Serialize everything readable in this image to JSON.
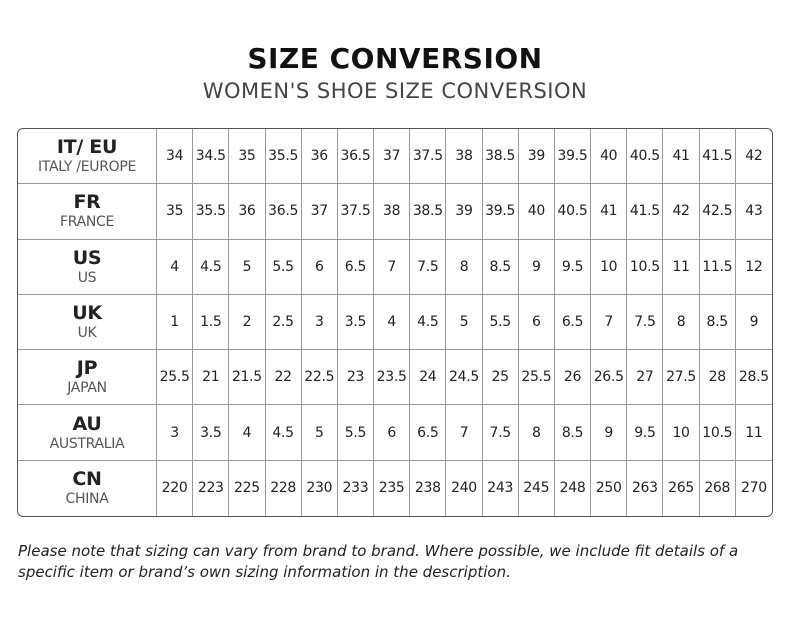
{
  "header": {
    "title": "SIZE CONVERSION",
    "subtitle": "WOMEN'S SHOE SIZE CONVERSION"
  },
  "table": {
    "rows": [
      {
        "code": "IT/ EU",
        "name": "ITALY /EUROPE",
        "values": [
          34,
          34.5,
          35,
          35.5,
          36,
          36.5,
          37,
          37.5,
          38,
          38.5,
          39,
          39.5,
          40,
          40.5,
          41,
          41.5,
          42
        ]
      },
      {
        "code": "FR",
        "name": "FRANCE",
        "values": [
          35,
          35.5,
          36,
          36.5,
          37,
          37.5,
          38,
          38.5,
          39,
          39.5,
          40,
          40.5,
          41,
          41.5,
          42,
          42.5,
          43
        ]
      },
      {
        "code": "US",
        "name": "US",
        "values": [
          4,
          4.5,
          5,
          5.5,
          6,
          6.5,
          7,
          7.5,
          8,
          8.5,
          9,
          9.5,
          10,
          10.5,
          11,
          11.5,
          12
        ]
      },
      {
        "code": "UK",
        "name": "UK",
        "values": [
          1,
          1.5,
          2,
          2.5,
          3,
          3.5,
          4,
          4.5,
          5,
          5.5,
          6,
          6.5,
          7,
          7.5,
          8,
          8.5,
          9
        ]
      },
      {
        "code": "JP",
        "name": "JAPAN",
        "values": [
          25.5,
          21,
          21.5,
          22,
          22.5,
          23,
          23.5,
          24,
          24.5,
          25,
          25.5,
          26,
          26.5,
          27,
          27.5,
          28,
          28.5
        ]
      },
      {
        "code": "AU",
        "name": "AUSTRALIA",
        "values": [
          3,
          3.5,
          4,
          4.5,
          5,
          5.5,
          6,
          6.5,
          7,
          7.5,
          8,
          8.5,
          9,
          9.5,
          10,
          10.5,
          11
        ]
      },
      {
        "code": "CN",
        "name": "CHINA",
        "values": [
          220,
          223,
          225,
          228,
          230,
          233,
          235,
          238,
          240,
          243,
          245,
          248,
          250,
          263,
          265,
          268,
          270
        ]
      }
    ]
  },
  "note": "Please note that sizing can vary from brand to brand. Where possible, we include fit details of a specific item or brand’s own sizing information in the description."
}
